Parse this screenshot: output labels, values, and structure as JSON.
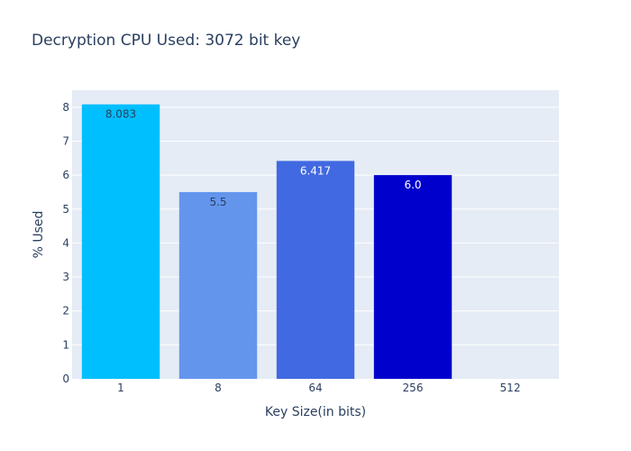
{
  "chart_data": {
    "type": "bar",
    "title": "Decryption CPU Used: 3072 bit key",
    "xlabel": "Key Size(in bits)",
    "ylabel": "% Used",
    "categories": [
      "1",
      "8",
      "64",
      "256",
      "512"
    ],
    "values": [
      8.083,
      5.5,
      6.417,
      6.0,
      0
    ],
    "data_labels": [
      "8.083",
      "5.5",
      "6.417",
      "6.0",
      ""
    ],
    "bar_colors": [
      "#00bfff",
      "#6495ed",
      "#4169e1",
      "#0000cd",
      "#00008b"
    ],
    "label_colors": [
      "#2a3f5f",
      "#2a3f5f",
      "#ffffff",
      "#ffffff",
      "#ffffff"
    ],
    "ylim": [
      0,
      8.5
    ],
    "yticks": [
      0,
      1,
      2,
      3,
      4,
      5,
      6,
      7,
      8
    ],
    "grid": true,
    "plot_background": "#e5ecf6",
    "text_color": "#2a3f5f"
  }
}
